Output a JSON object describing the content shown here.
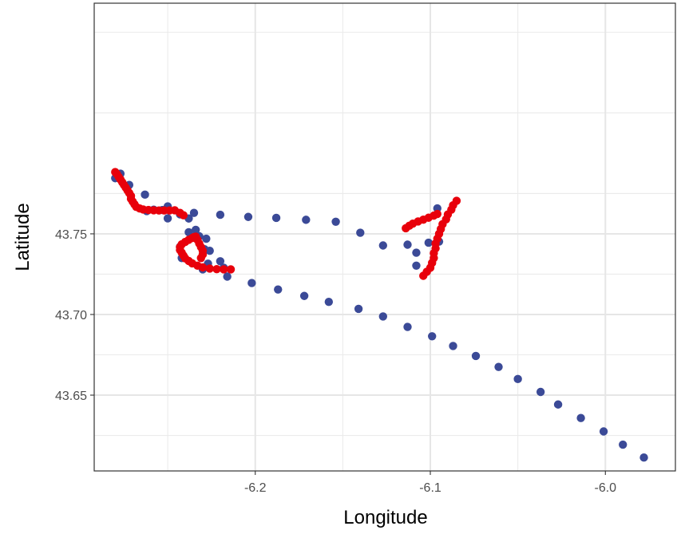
{
  "chart_data": {
    "type": "scatter",
    "xlabel": "Longitude",
    "ylabel": "Latitude",
    "xlim": [
      -6.292,
      -5.96
    ],
    "ylim": [
      43.603,
      43.893
    ],
    "x_ticks": [
      -6.2,
      -6.1,
      -6.0
    ],
    "x_tick_labels": [
      "-6.2",
      "-6.1",
      "-6.0"
    ],
    "y_ticks": [
      43.65,
      43.7,
      43.75
    ],
    "y_tick_labels": [
      "43.65",
      "43.70",
      "43.75"
    ],
    "grid": true,
    "legend": "none",
    "series": [
      {
        "color": "#3b4a97",
        "points": [
          [
            -6.28,
            43.7845
          ],
          [
            -6.277,
            43.7873
          ],
          [
            -6.272,
            43.7803
          ],
          [
            -6.263,
            43.7743
          ],
          [
            -6.262,
            43.7641
          ],
          [
            -6.258,
            43.765
          ],
          [
            -6.253,
            43.7648
          ],
          [
            -6.25,
            43.767
          ],
          [
            -6.25,
            43.7596
          ],
          [
            -6.243,
            43.7621
          ],
          [
            -6.238,
            43.7595
          ],
          [
            -6.235,
            43.763
          ],
          [
            -6.22,
            43.7618
          ],
          [
            -6.204,
            43.7605
          ],
          [
            -6.188,
            43.7599
          ],
          [
            -6.171,
            43.7587
          ],
          [
            -6.154,
            43.7575
          ],
          [
            -6.14,
            43.7507
          ],
          [
            -6.127,
            43.7428
          ],
          [
            -6.113,
            43.7433
          ],
          [
            -6.108,
            43.7383
          ],
          [
            -6.108,
            43.7303
          ],
          [
            -6.101,
            43.7445
          ],
          [
            -6.096,
            43.7658
          ],
          [
            -6.095,
            43.7452
          ],
          [
            -6.238,
            43.751
          ],
          [
            -6.234,
            43.7525
          ],
          [
            -6.232,
            43.7485
          ],
          [
            -6.228,
            43.747
          ],
          [
            -6.243,
            43.742
          ],
          [
            -6.242,
            43.735
          ],
          [
            -6.229,
            43.7405
          ],
          [
            -6.226,
            43.7395
          ],
          [
            -6.227,
            43.7315
          ],
          [
            -6.23,
            43.728
          ],
          [
            -6.22,
            43.733
          ],
          [
            -6.218,
            43.729
          ],
          [
            -6.216,
            43.7235
          ],
          [
            -6.202,
            43.7195
          ],
          [
            -6.187,
            43.7155
          ],
          [
            -6.172,
            43.7115
          ],
          [
            -6.158,
            43.7078
          ],
          [
            -6.141,
            43.7035
          ],
          [
            -6.127,
            43.6988
          ],
          [
            -6.113,
            43.6923
          ],
          [
            -6.099,
            43.6865
          ],
          [
            -6.087,
            43.6805
          ],
          [
            -6.074,
            43.6743
          ],
          [
            -6.061,
            43.6675
          ],
          [
            -6.05,
            43.66
          ],
          [
            -6.037,
            43.652
          ],
          [
            -6.027,
            43.6442
          ],
          [
            -6.014,
            43.6358
          ],
          [
            -6.001,
            43.6275
          ],
          [
            -5.99,
            43.6193
          ],
          [
            -5.978,
            43.6113
          ]
        ]
      },
      {
        "color": "#e8000b",
        "points": [
          [
            -6.28,
            43.7883
          ],
          [
            -6.279,
            43.787
          ],
          [
            -6.278,
            43.7853
          ],
          [
            -6.277,
            43.7837
          ],
          [
            -6.276,
            43.782
          ],
          [
            -6.275,
            43.7803
          ],
          [
            -6.274,
            43.7787
          ],
          [
            -6.273,
            43.777
          ],
          [
            -6.272,
            43.7753
          ],
          [
            -6.271,
            43.7735
          ],
          [
            -6.271,
            43.7717
          ],
          [
            -6.27,
            43.77
          ],
          [
            -6.269,
            43.7683
          ],
          [
            -6.268,
            43.7667
          ],
          [
            -6.266,
            43.7657
          ],
          [
            -6.264,
            43.7651
          ],
          [
            -6.261,
            43.7648
          ],
          [
            -6.258,
            43.7646
          ],
          [
            -6.255,
            43.7645
          ],
          [
            -6.252,
            43.7645
          ],
          [
            -6.249,
            43.7645
          ],
          [
            -6.246,
            43.7646
          ],
          [
            -6.243,
            43.763
          ],
          [
            -6.241,
            43.7615
          ],
          [
            -6.234,
            43.7483
          ],
          [
            -6.236,
            43.7474
          ],
          [
            -6.238,
            43.7463
          ],
          [
            -6.24,
            43.745
          ],
          [
            -6.242,
            43.7435
          ],
          [
            -6.243,
            43.7418
          ],
          [
            -6.243,
            43.74
          ],
          [
            -6.242,
            43.7383
          ],
          [
            -6.241,
            43.7365
          ],
          [
            -6.24,
            43.7348
          ],
          [
            -6.238,
            43.7332
          ],
          [
            -6.236,
            43.7317
          ],
          [
            -6.233,
            43.7303
          ],
          [
            -6.23,
            43.7292
          ],
          [
            -6.226,
            43.7285
          ],
          [
            -6.222,
            43.7281
          ],
          [
            -6.218,
            43.728
          ],
          [
            -6.214,
            43.728
          ],
          [
            -6.231,
            43.735
          ],
          [
            -6.23,
            43.7372
          ],
          [
            -6.23,
            43.7395
          ],
          [
            -6.231,
            43.7418
          ],
          [
            -6.232,
            43.744
          ],
          [
            -6.233,
            43.7463
          ],
          [
            -6.235,
            43.748
          ],
          [
            -6.114,
            43.7535
          ],
          [
            -6.112,
            43.755
          ],
          [
            -6.11,
            43.7563
          ],
          [
            -6.107,
            43.7577
          ],
          [
            -6.104,
            43.7588
          ],
          [
            -6.101,
            43.76
          ],
          [
            -6.098,
            43.7613
          ],
          [
            -6.096,
            43.7623
          ],
          [
            -6.085,
            43.7705
          ],
          [
            -6.087,
            43.7677
          ],
          [
            -6.088,
            43.765
          ],
          [
            -6.09,
            43.762
          ],
          [
            -6.091,
            43.759
          ],
          [
            -6.093,
            43.756
          ],
          [
            -6.094,
            43.753
          ],
          [
            -6.095,
            43.75
          ],
          [
            -6.096,
            43.747
          ],
          [
            -6.097,
            43.744
          ],
          [
            -6.097,
            43.741
          ],
          [
            -6.098,
            43.738
          ],
          [
            -6.098,
            43.735
          ],
          [
            -6.099,
            43.732
          ],
          [
            -6.1,
            43.729
          ],
          [
            -6.102,
            43.7265
          ],
          [
            -6.104,
            43.724
          ]
        ]
      }
    ]
  }
}
